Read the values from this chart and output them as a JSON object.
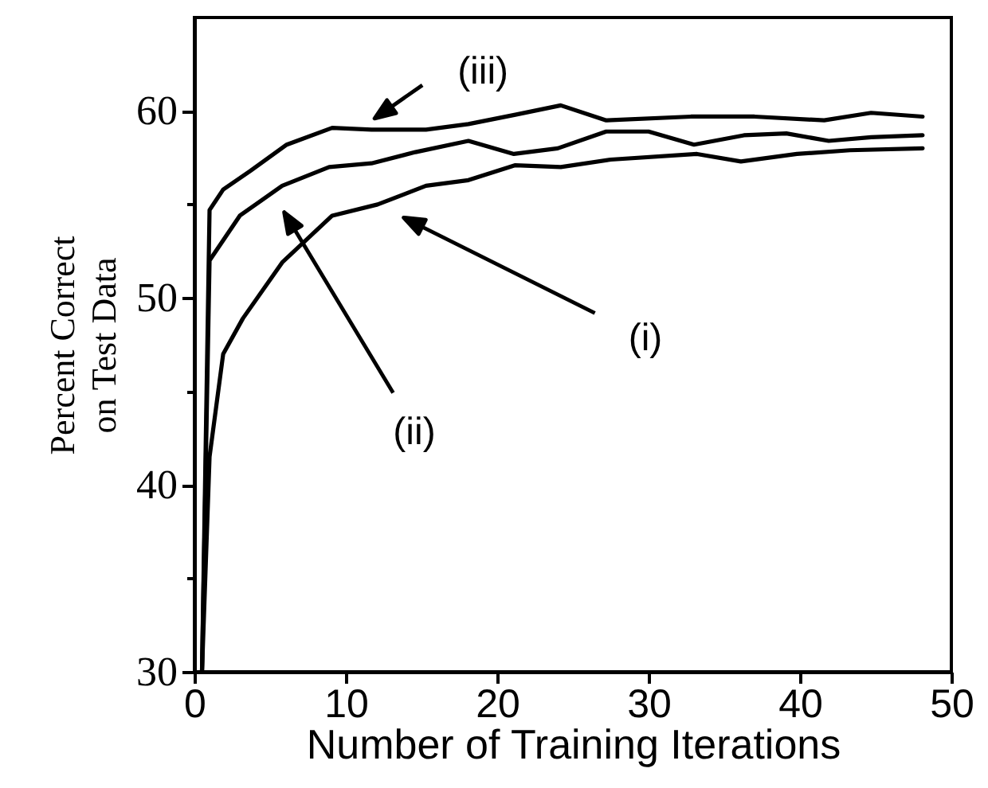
{
  "chart_data": {
    "type": "line",
    "xlabel": "Number of Training Iterations",
    "ylabel": "Percent Correct\non Test Data",
    "xlim": [
      0,
      50
    ],
    "ylim": [
      30,
      65
    ],
    "xticks": [
      0,
      10,
      20,
      30,
      40,
      50
    ],
    "yticks": [
      30,
      {
        "value": 35,
        "label": null
      },
      40,
      {
        "value": 45,
        "label": null
      },
      50,
      {
        "value": 55,
        "label": null
      },
      60
    ],
    "line_style": "solid",
    "series": [
      {
        "color": "#000000",
        "x": [
          0.5,
          1.0,
          1.9,
          3.2,
          5.8,
          9.1,
          12.1,
          15.3,
          18.1,
          21.2,
          24.2,
          27.5,
          33.2,
          36.1,
          39.8,
          43.3,
          48.1
        ],
        "values": [
          30,
          41.5,
          47.0,
          48.9,
          51.9,
          54.4,
          55.0,
          56.0,
          56.3,
          57.1,
          57.0,
          57.4,
          57.7,
          57.3,
          57.7,
          57.9,
          58.0
        ]
      },
      {
        "color": "#000000",
        "x": [
          0.5,
          1.0,
          3.0,
          5.8,
          8.9,
          11.7,
          14.6,
          18.1,
          21.1,
          24.0,
          27.2,
          30.0,
          33.0,
          36.3,
          39.1,
          41.9,
          44.7,
          48.1
        ],
        "values": [
          30,
          52.0,
          54.4,
          56.0,
          57.0,
          57.2,
          57.8,
          58.4,
          57.7,
          58.0,
          58.9,
          58.9,
          58.2,
          58.7,
          58.8,
          58.4,
          58.6,
          58.7
        ]
      },
      {
        "color": "#000000",
        "x": [
          0.5,
          1.0,
          1.9,
          3.7,
          6.1,
          9.1,
          11.7,
          15.3,
          18.1,
          21.2,
          24.2,
          27.2,
          32.8,
          37.0,
          41.6,
          44.7,
          48.1
        ],
        "values": [
          30,
          54.7,
          55.8,
          56.8,
          58.2,
          59.1,
          59.0,
          59.0,
          59.3,
          59.8,
          60.3,
          59.5,
          59.7,
          59.7,
          59.5,
          59.9,
          59.7
        ]
      }
    ],
    "annotations": [
      "(i)",
      "(ii)",
      {
        "text": "(iii)",
        "x": 11.9,
        "y": 59.0
      }
    ]
  }
}
